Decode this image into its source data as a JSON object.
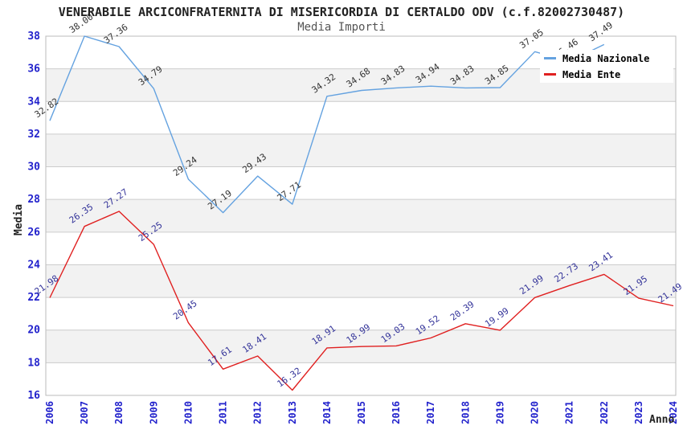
{
  "header": {
    "title": "VENERABILE ARCICONFRATERNITA DI MISERICORDIA DI CERTALDO ODV (c.f.82002730487)",
    "subtitle": "Media Importi"
  },
  "chart_data": {
    "type": "line",
    "title": "VENERABILE ARCICONFRATERNITA DI MISERICORDIA DI CERTALDO ODV (c.f.82002730487)",
    "subtitle": "Media Importi",
    "xlabel": "Anno",
    "ylabel": "Media",
    "categories": [
      "2006",
      "2007",
      "2008",
      "2009",
      "2010",
      "2011",
      "2012",
      "2013",
      "2014",
      "2015",
      "2016",
      "2017",
      "2018",
      "2019",
      "2020",
      "2021",
      "2022",
      "2023",
      "2024"
    ],
    "series": [
      {
        "name": "Media Nazionale",
        "color": "#64a2e0",
        "label_color": "#333333",
        "values": [
          32.82,
          38.0,
          37.36,
          34.79,
          29.24,
          27.19,
          29.43,
          27.71,
          34.32,
          34.68,
          34.83,
          34.94,
          34.83,
          34.85,
          37.05,
          36.46,
          37.49,
          null,
          null
        ]
      },
      {
        "name": "Media Ente",
        "color": "#e02020",
        "label_color": "#333399",
        "values": [
          21.98,
          26.35,
          27.27,
          25.25,
          20.45,
          17.61,
          18.41,
          16.32,
          18.91,
          18.99,
          19.03,
          19.52,
          20.39,
          19.99,
          21.99,
          22.73,
          23.41,
          21.95,
          21.49
        ]
      }
    ],
    "ylim": [
      16,
      38
    ],
    "ytick_step": 2,
    "grid": true,
    "band_fill": "#f2f2f2",
    "grid_color": "#cccccc",
    "border_color": "#bbbbbb",
    "tick_label_color": "#2222cc",
    "legend_position": "top-right"
  }
}
